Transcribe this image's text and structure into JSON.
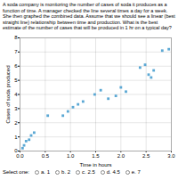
{
  "chart_data": {
    "type": "scatter",
    "title": "A soda company is monitoring the number of cases of soda it produces as a function of time. A manager checked the line several times a day for a week. She then graphed the combined data. Assume that we should see a linear (best straight line) relationship between time and production. What is the best estimate of the number of cases that will be produced in 1 hr on a typical day?",
    "x_label": "Time in hours",
    "y_label": "Cases of soda produced",
    "x": [
      0.05,
      0.08,
      0.12,
      0.18,
      0.22,
      0.28,
      0.55,
      0.85,
      0.95,
      1.05,
      1.15,
      1.25,
      1.48,
      1.6,
      1.75,
      1.9,
      2.0,
      2.1,
      2.38,
      2.48,
      2.55,
      2.6,
      2.65,
      2.82,
      2.95
    ],
    "values": [
      0.2,
      0.4,
      0.7,
      0.8,
      1.1,
      1.3,
      2.5,
      2.5,
      2.8,
      3.1,
      3.3,
      3.5,
      4.0,
      4.3,
      3.7,
      3.9,
      4.5,
      4.2,
      5.9,
      6.1,
      5.4,
      5.2,
      5.7,
      7.1,
      7.2
    ],
    "color": "#5ba8d4",
    "marker": "square",
    "xlim": [
      0,
      3
    ],
    "ylim": [
      0,
      8
    ],
    "xticks": [
      {
        "value": 0,
        "label": "0.0"
      },
      {
        "value": 0.5,
        "label": "0.5"
      },
      {
        "value": 1,
        "label": "1.0"
      },
      {
        "value": 1.5,
        "label": "1.5"
      },
      {
        "value": 2,
        "label": "2.0"
      },
      {
        "value": 2.5,
        "label": "2.5"
      },
      {
        "value": 3,
        "label": "3.0"
      }
    ],
    "yticks": [
      0,
      1,
      2,
      3,
      4,
      5,
      6,
      7,
      8
    ],
    "grid": true,
    "annotations": [
      "Select one:",
      "a. 1",
      "b. 2",
      "c. 2.5",
      "d. 4.5",
      "e. 7"
    ]
  }
}
